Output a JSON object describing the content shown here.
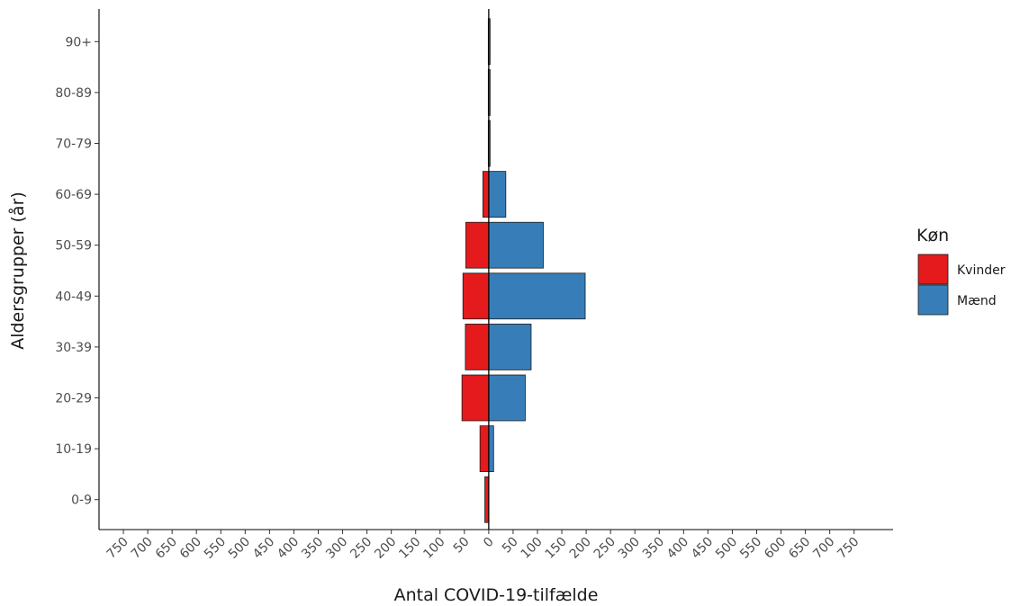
{
  "chart_data": {
    "type": "bar",
    "orientation": "horizontal",
    "layout": "population-pyramid",
    "categories": [
      "0-9",
      "10-19",
      "20-29",
      "30-39",
      "40-49",
      "50-59",
      "60-69",
      "70-79",
      "80-89",
      "90+"
    ],
    "series": [
      {
        "name": "Kvinder",
        "color": "#e41a1c",
        "side": "left",
        "values": [
          8,
          18,
          55,
          48,
          53,
          47,
          12,
          1,
          1,
          1
        ]
      },
      {
        "name": "Mænd",
        "color": "#377eb8",
        "side": "right",
        "values": [
          0,
          10,
          75,
          87,
          198,
          112,
          35,
          1,
          1,
          1
        ]
      }
    ],
    "xlabel": "Antal COVID-19-tilfælde",
    "ylabel": "Aldersgrupper (år)",
    "xlim": [
      -800,
      830
    ],
    "xticks": [
      -750,
      -700,
      -650,
      -600,
      -550,
      -500,
      -450,
      -400,
      -350,
      -300,
      -250,
      -200,
      -150,
      -100,
      -50,
      0,
      50,
      100,
      150,
      200,
      250,
      300,
      350,
      400,
      450,
      500,
      550,
      600,
      650,
      700,
      750
    ],
    "xtick_labels_absolute": true,
    "xtick_label_rotation": -45,
    "legend": {
      "title": "Køn",
      "position": "right"
    },
    "grid": false,
    "zero_line": true
  }
}
